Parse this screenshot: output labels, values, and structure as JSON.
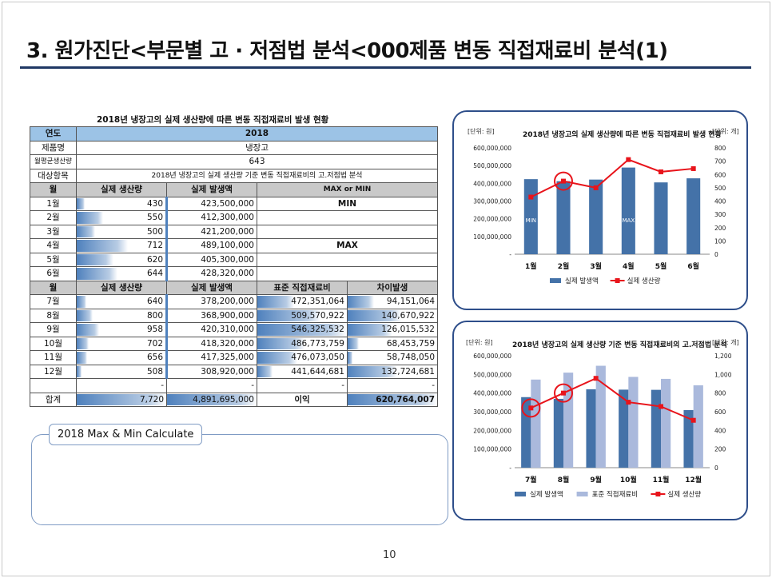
{
  "title": "3. 원가진단<부문별 고 · 저점법 분석<000제품 변동 직접재료비 분석(1)",
  "page_number": "10",
  "table": {
    "caption": "2018년 냉장고의 실제 생산량에 따른 변동 직접재료비 발생 현황",
    "year_label": "연도",
    "year_value": "2018",
    "product_label": "제품명",
    "product_value": "냉장고",
    "avg_label": "월평균생산량",
    "avg_value": "643",
    "target_label": "대상항목",
    "target_value": "2018년 냉장고의 실제 생산량 기준 변동 직접재료비의 고.저점법 분석",
    "h1_month": "월",
    "h1_qty": "실제 생산량",
    "h1_amt": "실제 발생액",
    "h1_maxmin": "MAX or MIN",
    "rows1": [
      {
        "month": "1월",
        "qty": "430",
        "amt": "423,500,000",
        "mark": "MIN",
        "qty_n": 430
      },
      {
        "month": "2월",
        "qty": "550",
        "amt": "412,300,000",
        "mark": "",
        "qty_n": 550
      },
      {
        "month": "3월",
        "qty": "500",
        "amt": "421,200,000",
        "mark": "",
        "qty_n": 500
      },
      {
        "month": "4월",
        "qty": "712",
        "amt": "489,100,000",
        "mark": "MAX",
        "qty_n": 712
      },
      {
        "month": "5월",
        "qty": "620",
        "amt": "405,300,000",
        "mark": "",
        "qty_n": 620
      },
      {
        "month": "6월",
        "qty": "644",
        "amt": "428,320,000",
        "mark": "",
        "qty_n": 644
      }
    ],
    "h2_month": "월",
    "h2_qty": "실제 생산량",
    "h2_amt": "실제 발생액",
    "h2_std": "표준 직접재료비",
    "h2_diff": "차이발생",
    "rows2": [
      {
        "month": "7월",
        "qty": "640",
        "amt": "378,200,000",
        "std": "472,351,064",
        "diff": "94,151,064",
        "qty_n": 640,
        "std_n": 472351064,
        "diff_n": 94151064
      },
      {
        "month": "8월",
        "qty": "800",
        "amt": "368,900,000",
        "std": "509,570,922",
        "diff": "140,670,922",
        "qty_n": 800,
        "std_n": 509570922,
        "diff_n": 140670922
      },
      {
        "month": "9월",
        "qty": "958",
        "amt": "420,310,000",
        "std": "546,325,532",
        "diff": "126,015,532",
        "qty_n": 958,
        "std_n": 546325532,
        "diff_n": 126015532
      },
      {
        "month": "10월",
        "qty": "702",
        "amt": "418,320,000",
        "std": "486,773,759",
        "diff": "68,453,759",
        "qty_n": 702,
        "std_n": 486773759,
        "diff_n": 68453759
      },
      {
        "month": "11월",
        "qty": "656",
        "amt": "417,325,000",
        "std": "476,073,050",
        "diff": "58,748,050",
        "qty_n": 656,
        "std_n": 476073050,
        "diff_n": 58748050
      },
      {
        "month": "12월",
        "qty": "508",
        "amt": "308,920,000",
        "std": "441,644,681",
        "diff": "132,724,681",
        "qty_n": 508,
        "std_n": 441644681,
        "diff_n": 132724681
      }
    ],
    "dash": "-",
    "total_label": "합계",
    "total_qty": "7,720",
    "total_amt": "4,891,695,000",
    "profit_label": "이익",
    "profit_value": "620,764,007"
  },
  "calc_label": "2018 Max & Min Calculate",
  "chart_data": [
    {
      "type": "bar",
      "title": "2018년 냉장고의 실제 생산량에 따른 변동 직접재료비 발생 현황",
      "unit_left": "[단위: 원]",
      "unit_right": "[단위: 개]",
      "categories": [
        "1월",
        "2월",
        "3월",
        "4월",
        "5월",
        "6월"
      ],
      "series": [
        {
          "name": "실제 발생액",
          "type": "bar",
          "axis": "left",
          "color": "#4472a8",
          "values": [
            423500000,
            412300000,
            421200000,
            489100000,
            405300000,
            428320000
          ]
        },
        {
          "name": "실제 생산량",
          "type": "line",
          "axis": "right",
          "color": "#e8141b",
          "values": [
            430,
            550,
            500,
            712,
            620,
            644
          ]
        }
      ],
      "ylim_left": [
        0,
        600000000
      ],
      "yticks_left": [
        "-",
        "100,000,000",
        "200,000,000",
        "300,000,000",
        "400,000,000",
        "500,000,000",
        "600,000,000"
      ],
      "ylim_right": [
        0,
        800
      ],
      "yticks_right": [
        "0",
        "100",
        "200",
        "300",
        "400",
        "500",
        "600",
        "700",
        "800"
      ],
      "bar_labels": [
        "MIN",
        "",
        "",
        "MAX",
        "",
        ""
      ],
      "highlight_index": 1,
      "legend_position": "bottom"
    },
    {
      "type": "bar",
      "title": "2018년 냉장고의 실제 생산량 기준 변동 직접재료비의 고.저점법 분석",
      "unit_left": "[단위: 원]",
      "unit_right": "[단위: 개]",
      "categories": [
        "7월",
        "8월",
        "9월",
        "10월",
        "11월",
        "12월"
      ],
      "series": [
        {
          "name": "실제 발생액",
          "type": "bar",
          "axis": "left",
          "color": "#4472a8",
          "values": [
            378200000,
            368900000,
            420310000,
            418320000,
            417325000,
            308920000
          ]
        },
        {
          "name": "표준 직접재료비",
          "type": "bar",
          "axis": "left",
          "color": "#aab9dc",
          "values": [
            472351064,
            509570922,
            546325532,
            486773759,
            476073050,
            441644681
          ]
        },
        {
          "name": "실제 생산량",
          "type": "line",
          "axis": "right",
          "color": "#e8141b",
          "values": [
            640,
            800,
            958,
            702,
            656,
            508
          ]
        }
      ],
      "ylim_left": [
        0,
        600000000
      ],
      "yticks_left": [
        "-",
        "100,000,000",
        "200,000,000",
        "300,000,000",
        "400,000,000",
        "500,000,000",
        "600,000,000"
      ],
      "ylim_right": [
        0,
        1200
      ],
      "yticks_right": [
        "0",
        "200",
        "400",
        "600",
        "800",
        "1,000",
        "1,200"
      ],
      "highlight_indices": [
        0,
        1
      ],
      "legend_position": "bottom"
    }
  ]
}
